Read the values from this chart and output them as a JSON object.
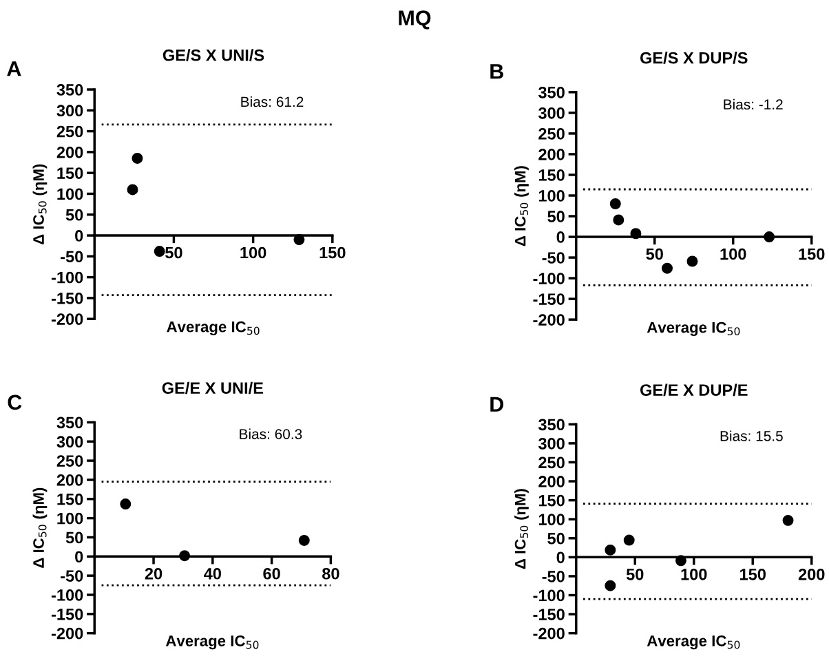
{
  "chart_data": [
    {
      "type": "scatter",
      "title": "GE/S X UNI/S",
      "xlabel": "Average IC$_{50}$",
      "ylabel": "Δ IC$_{50}$ (ηM)",
      "annotations": [
        "MQ",
        "A",
        "Bias: 61.2"
      ],
      "x": [
        24,
        27,
        41,
        129
      ],
      "values": [
        110,
        185,
        -38,
        -10
      ],
      "color": "#000000",
      "marker": "circle",
      "grid": false,
      "xlim": [
        0,
        150
      ],
      "xticks": [
        50,
        100,
        150
      ],
      "ylim": [
        -200,
        350
      ],
      "yticks": [
        -200,
        -150,
        -100,
        -50,
        0,
        50,
        100,
        150,
        200,
        250,
        300,
        350
      ],
      "ref_lines": [
        {
          "axis": "y",
          "value": 266,
          "color": "#000000",
          "line_style": "dotted"
        },
        {
          "axis": "y",
          "value": -143,
          "color": "#000000",
          "line_style": "dotted"
        }
      ]
    },
    {
      "type": "scatter",
      "title": "GE/S X DUP/S",
      "xlabel": "Average IC$_{50}$",
      "ylabel": "Δ IC$_{50}$ (ηM)",
      "annotations": [
        "B",
        "Bias: -1.2"
      ],
      "x": [
        25,
        27,
        38,
        58,
        74,
        123
      ],
      "values": [
        80,
        41,
        8,
        -76,
        -59,
        0
      ],
      "color": "#000000",
      "marker": "circle",
      "grid": false,
      "xlim": [
        0,
        150
      ],
      "xticks": [
        50,
        100,
        150
      ],
      "ylim": [
        -200,
        350
      ],
      "yticks": [
        -200,
        -150,
        -100,
        -50,
        0,
        50,
        100,
        150,
        200,
        250,
        300,
        350
      ],
      "ref_lines": [
        {
          "axis": "y",
          "value": 115,
          "color": "#000000",
          "line_style": "dotted"
        },
        {
          "axis": "y",
          "value": -117,
          "color": "#000000",
          "line_style": "dotted"
        }
      ]
    },
    {
      "type": "scatter",
      "title": "GE/E X UNI/E",
      "xlabel": "Average IC$_{50}$",
      "ylabel": "Δ IC$_{50}$ (ηM)",
      "annotations": [
        "C",
        "Bias: 60.3"
      ],
      "x": [
        10.5,
        30.5,
        71
      ],
      "values": [
        137,
        2,
        42
      ],
      "color": "#000000",
      "marker": "circle",
      "grid": false,
      "xlim": [
        0,
        80
      ],
      "xticks": [
        20,
        40,
        60,
        80
      ],
      "ylim": [
        -200,
        350
      ],
      "yticks": [
        -200,
        -150,
        -100,
        -50,
        0,
        50,
        100,
        150,
        200,
        250,
        300,
        350
      ],
      "ref_lines": [
        {
          "axis": "y",
          "value": 195,
          "color": "#000000",
          "line_style": "dotted"
        },
        {
          "axis": "y",
          "value": -75,
          "color": "#000000",
          "line_style": "dotted"
        }
      ]
    },
    {
      "type": "scatter",
      "title": "GE/E X DUP/E",
      "xlabel": "Average IC$_{50}$",
      "ylabel": "Δ IC$_{50}$ (ηM)",
      "annotations": [
        "D",
        "Bias: 15.5"
      ],
      "x": [
        29,
        45,
        89,
        180,
        29
      ],
      "values": [
        19,
        45,
        -9,
        97,
        -75
      ],
      "color": "#000000",
      "marker": "circle",
      "grid": false,
      "xlim": [
        0,
        200
      ],
      "xticks": [
        50,
        100,
        150,
        200
      ],
      "ylim": [
        -200,
        350
      ],
      "yticks": [
        -200,
        -150,
        -100,
        -50,
        0,
        50,
        100,
        150,
        200,
        250,
        300,
        350
      ],
      "ref_lines": [
        {
          "axis": "y",
          "value": 141,
          "color": "#000000",
          "line_style": "dotted"
        },
        {
          "axis": "y",
          "value": -110,
          "color": "#000000",
          "line_style": "dotted"
        }
      ]
    }
  ]
}
